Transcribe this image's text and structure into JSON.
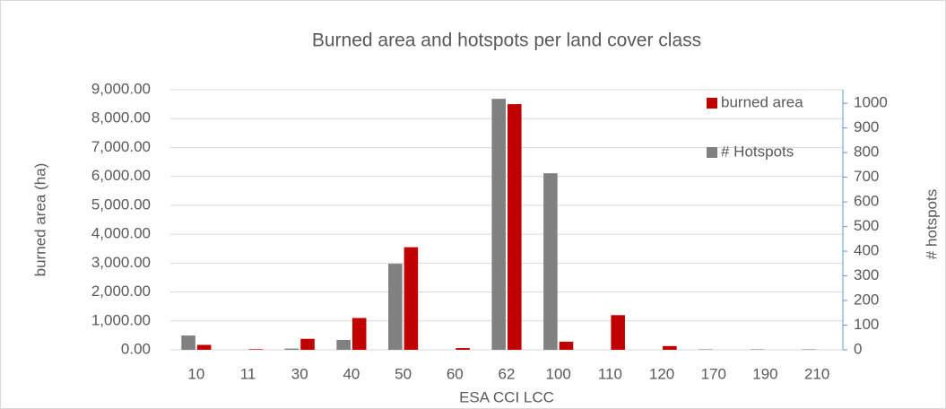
{
  "chart_data": {
    "type": "bar",
    "title": "Burned area and hotspots per land cover class",
    "x_label": "ESA CCI LCC",
    "y_label": "burned area (ha)",
    "y2_label": "# hotspots",
    "categories": [
      "10",
      "11",
      "30",
      "40",
      "50",
      "60",
      "62",
      "100",
      "110",
      "120",
      "170",
      "190",
      "210"
    ],
    "series": [
      {
        "name": "burned area",
        "color": "#c00000",
        "values": [
          170,
          20,
          380,
          1100,
          3550,
          60,
          8500,
          280,
          1200,
          130,
          0,
          0,
          0
        ]
      },
      {
        "name": "# Hotspots",
        "color": "#808080",
        "axis": "y2",
        "values": [
          58,
          0,
          5,
          40,
          349,
          0,
          1018,
          716,
          0,
          0,
          2,
          2,
          2
        ]
      }
    ],
    "ylim": [
      0,
      9000
    ],
    "yticks": [
      {
        "value": 0,
        "label": "0.00"
      },
      {
        "value": 1000,
        "label": "1,000.00"
      },
      {
        "value": 2000,
        "label": "2,000.00"
      },
      {
        "value": 3000,
        "label": "3,000.00"
      },
      {
        "value": 4000,
        "label": "4,000.00"
      },
      {
        "value": 5000,
        "label": "5,000.00"
      },
      {
        "value": 6000,
        "label": "6,000.00"
      },
      {
        "value": 7000,
        "label": "7,000.00"
      },
      {
        "value": 8000,
        "label": "8,000.00"
      },
      {
        "value": 9000,
        "label": "9,000.00"
      }
    ],
    "y2lim": [
      0,
      1055
    ],
    "y2ticks": [
      0,
      100,
      200,
      300,
      400,
      500,
      600,
      700,
      800,
      900,
      1000
    ],
    "grid": true,
    "legend": "top-right"
  }
}
